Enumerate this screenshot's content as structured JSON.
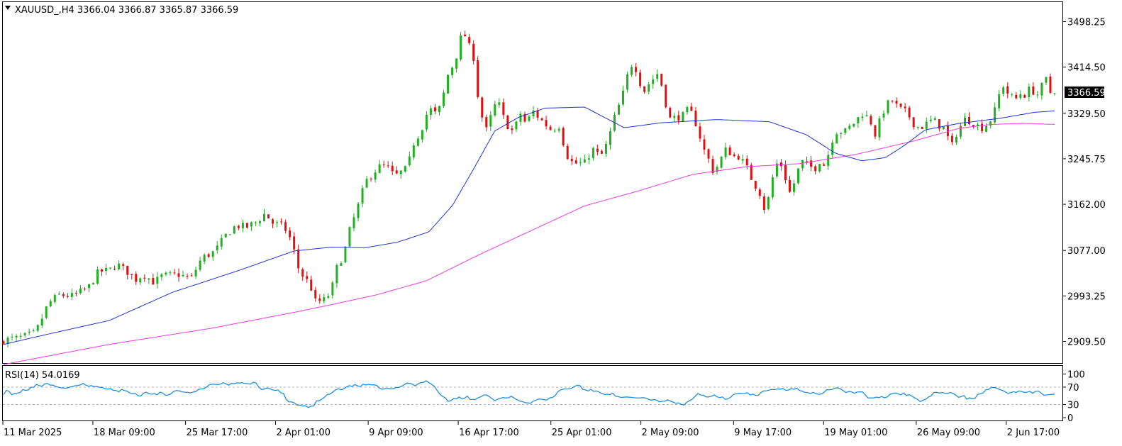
{
  "header": {
    "symbol_line": "XAUUSD_,H4  3366.04 3366.87 3365.87 3366.59"
  },
  "price_tag": "3366.59",
  "rsi_label": "RSI(14) 54.0169",
  "colors": {
    "bull": "#22b022",
    "bear": "#e01010",
    "ma_fast": "#1f35d8",
    "ma_slow": "#ef3ae0",
    "rsi": "#1f8fe0",
    "price_tag_bg": "#000000"
  },
  "chart_data": [
    {
      "type": "candlestick",
      "title": "XAUUSD_,H4",
      "ohlc_last": {
        "open": 3366.04,
        "high": 3366.87,
        "low": 3365.87,
        "close": 3366.59
      },
      "y_ticks": [
        "3498.25",
        "3414.50",
        "3329.50",
        "3245.75",
        "3162.00",
        "3077.00",
        "2993.25",
        "2909.50"
      ],
      "ylim": [
        2866,
        3526
      ],
      "x_ticks": [
        "11 Mar 2025",
        "18 Mar 09:00",
        "25 Mar 17:00",
        "2 Apr 01:00",
        "9 Apr 09:00",
        "16 Apr 17:00",
        "25 Apr 01:00",
        "2 May 09:00",
        "9 May 17:00",
        "19 May 01:00",
        "26 May 09:00",
        "2 Jun 17:00"
      ],
      "candles_count": 247,
      "close_path": [
        [
          0,
          2912
        ],
        [
          6,
          2916
        ],
        [
          12,
          2925
        ],
        [
          14,
          2946
        ],
        [
          17,
          2980
        ],
        [
          21,
          2995
        ],
        [
          26,
          2993
        ],
        [
          32,
          3008
        ],
        [
          36,
          3038
        ],
        [
          40,
          3040
        ],
        [
          43,
          3052
        ],
        [
          47,
          3037
        ],
        [
          50,
          3023
        ],
        [
          53,
          3033
        ],
        [
          57,
          3018
        ],
        [
          60,
          3030
        ],
        [
          66,
          3033
        ],
        [
          71,
          3025
        ],
        [
          75,
          3063
        ],
        [
          80,
          3075
        ],
        [
          84,
          3104
        ],
        [
          88,
          3123
        ],
        [
          92,
          3120
        ],
        [
          96,
          3130
        ],
        [
          99,
          3145
        ],
        [
          102,
          3127
        ],
        [
          106,
          3122
        ],
        [
          109,
          3095
        ],
        [
          112,
          3038
        ],
        [
          116,
          3015
        ],
        [
          118,
          2983
        ],
        [
          121,
          2984
        ],
        [
          124,
          3000
        ],
        [
          126,
          3043
        ],
        [
          129,
          3072
        ],
        [
          131,
          3113
        ],
        [
          134,
          3155
        ],
        [
          137,
          3203
        ],
        [
          142,
          3231
        ],
        [
          145,
          3233
        ],
        [
          148,
          3213
        ],
        [
          153,
          3229
        ],
        [
          155,
          3272
        ],
        [
          158,
          3297
        ],
        [
          161,
          3339
        ],
        [
          164,
          3327
        ],
        [
          166,
          3350
        ],
        [
          168,
          3398
        ],
        [
          171,
          3426
        ],
        [
          174,
          3485
        ],
        [
          175,
          3468
        ],
        [
          178,
          3432
        ],
        [
          179,
          3395
        ],
        [
          180,
          3340
        ],
        [
          183,
          3296
        ],
        [
          185,
          3332
        ],
        [
          187,
          3354
        ],
        [
          190,
          3312
        ],
        [
          193,
          3295
        ],
        [
          196,
          3332
        ],
        [
          198,
          3306
        ],
        [
          200,
          3336
        ],
        [
          203,
          3320
        ],
        [
          205,
          3310
        ],
        [
          208,
          3296
        ],
        [
          210,
          3313
        ],
        [
          212,
          3275
        ],
        [
          214,
          3244
        ],
        [
          216,
          3237
        ],
        [
          220,
          3238
        ],
        [
          223,
          3264
        ],
        [
          226,
          3249
        ],
        [
          228,
          3268
        ],
        [
          230,
          3298
        ],
        [
          232,
          3333
        ],
        [
          234,
          3354
        ],
        [
          236,
          3395
        ],
        [
          238,
          3421
        ],
        [
          240,
          3408
        ],
        [
          242,
          3366
        ],
        [
          244,
          3382
        ],
        [
          246,
          3393
        ],
        [
          248,
          3405
        ],
        [
          250,
          3365
        ],
        [
          252,
          3319
        ],
        [
          255,
          3322
        ],
        [
          257,
          3324
        ],
        [
          259,
          3335
        ],
        [
          261,
          3327
        ],
        [
          263,
          3298
        ],
        [
          265,
          3264
        ],
        [
          267,
          3244
        ],
        [
          269,
          3219
        ],
        [
          271,
          3240
        ],
        [
          274,
          3267
        ],
        [
          276,
          3249
        ],
        [
          278,
          3252
        ],
        [
          281,
          3234
        ],
        [
          284,
          3200
        ],
        [
          286,
          3189
        ],
        [
          288,
          3155
        ],
        [
          290,
          3177
        ],
        [
          292,
          3233
        ],
        [
          294,
          3241
        ],
        [
          296,
          3211
        ],
        [
          298,
          3179
        ],
        [
          300,
          3212
        ],
        [
          302,
          3241
        ],
        [
          305,
          3233
        ],
        [
          307,
          3226
        ],
        [
          309,
          3242
        ],
        [
          311,
          3233
        ],
        [
          314,
          3284
        ],
        [
          316,
          3300
        ],
        [
          318,
          3293
        ],
        [
          320,
          3302
        ],
        [
          323,
          3317
        ],
        [
          325,
          3330
        ],
        [
          328,
          3319
        ],
        [
          330,
          3290
        ],
        [
          333,
          3332
        ],
        [
          336,
          3356
        ],
        [
          339,
          3338
        ],
        [
          342,
          3331
        ],
        [
          345,
          3308
        ],
        [
          347,
          3302
        ],
        [
          349,
          3309
        ],
        [
          352,
          3318
        ],
        [
          354,
          3308
        ],
        [
          356,
          3302
        ],
        [
          359,
          3268
        ],
        [
          361,
          3295
        ],
        [
          364,
          3319
        ],
        [
          367,
          3313
        ],
        [
          369,
          3306
        ],
        [
          371,
          3302
        ],
        [
          374,
          3319
        ],
        [
          376,
          3342
        ],
        [
          378,
          3386
        ],
        [
          380,
          3368
        ],
        [
          383,
          3354
        ],
        [
          385,
          3366
        ],
        [
          387,
          3363
        ],
        [
          389,
          3378
        ],
        [
          391,
          3360
        ],
        [
          393,
          3378
        ],
        [
          395,
          3393
        ],
        [
          397,
          3357
        ],
        [
          398,
          3366
        ]
      ],
      "ma_fast_path": [
        [
          0,
          2904
        ],
        [
          16,
          2922
        ],
        [
          40,
          2948
        ],
        [
          64,
          3000
        ],
        [
          89,
          3040
        ],
        [
          110,
          3076
        ],
        [
          124,
          3083
        ],
        [
          137,
          3082
        ],
        [
          149,
          3092
        ],
        [
          161,
          3111
        ],
        [
          170,
          3160
        ],
        [
          178,
          3227
        ],
        [
          186,
          3297
        ],
        [
          195,
          3322
        ],
        [
          205,
          3339
        ],
        [
          220,
          3341
        ],
        [
          235,
          3303
        ],
        [
          249,
          3312
        ],
        [
          270,
          3318
        ],
        [
          290,
          3314
        ],
        [
          304,
          3290
        ],
        [
          315,
          3256
        ],
        [
          325,
          3242
        ],
        [
          334,
          3248
        ],
        [
          341,
          3270
        ],
        [
          349,
          3299
        ],
        [
          362,
          3311
        ],
        [
          377,
          3320
        ],
        [
          390,
          3331
        ],
        [
          398,
          3334
        ]
      ],
      "ma_slow_path": [
        [
          0,
          2867
        ],
        [
          40,
          2904
        ],
        [
          79,
          2934
        ],
        [
          110,
          2963
        ],
        [
          124,
          2977
        ],
        [
          141,
          2995
        ],
        [
          160,
          3021
        ],
        [
          180,
          3069
        ],
        [
          200,
          3114
        ],
        [
          220,
          3159
        ],
        [
          240,
          3186
        ],
        [
          261,
          3217
        ],
        [
          281,
          3231
        ],
        [
          302,
          3237
        ],
        [
          323,
          3254
        ],
        [
          345,
          3279
        ],
        [
          362,
          3302
        ],
        [
          374,
          3309
        ],
        [
          386,
          3311
        ],
        [
          398,
          3309
        ]
      ]
    },
    {
      "type": "line",
      "title": "RSI(14) 54.0169",
      "y_ticks": [
        "100",
        "70",
        "30",
        "0"
      ],
      "ylim": [
        0,
        100
      ],
      "levels": [
        70,
        30
      ],
      "series": [
        {
          "values": [
            52.3,
            62.7,
            60.1,
            52.5,
            55.4,
            56.2,
            57.4,
            64.2,
            62.8,
            63.3,
            69.8,
            70.0,
            76.1,
            73.5,
            72.0,
            77.2,
            78.3,
            74.6,
            74.4,
            71.5,
            69.5,
            68.3,
            67.8,
            67.7,
            69.7,
            71.2,
            73.1,
            73.5,
            75.2,
            78.3,
            74.5,
            72.1,
            73.5,
            71.1,
            71.6,
            69.6,
            69.5,
            66.2,
            65.2,
            66.5,
            62.4,
            62.5,
            59.0,
            64.8,
            62.4,
            60.8,
            56.8,
            55.5,
            55.4,
            50.4,
            49.4,
            56.3,
            58.4,
            55.1,
            53.6,
            55.0,
            52.6,
            58.4,
            56.4,
            51.1,
            52.1,
            54.6,
            60.0,
            62.1,
            61.3,
            59.3,
            58.3,
            58.0,
            56.7,
            58.6,
            59.6,
            64.7,
            65.8,
            66.3,
            70.4,
            75.5,
            76.6,
            76.4,
            75.9,
            76.7,
            80.1,
            77.8,
            74.5,
            78.5,
            77.7,
            79.9,
            79.3,
            80.0,
            78.5,
            77.9,
            76.8,
            81.1,
            79.3,
            70.0,
            64.5,
            65.6,
            68.3,
            66.3,
            63.8,
            62.5,
            63.6,
            57.1,
            55.7,
            41.1,
            36.3,
            36.0,
            33.6,
            28.9,
            28.7,
            26.5,
            27.3,
            23.4,
            26.1,
            26.7,
            38.2,
            39.0,
            42.4,
            47.1,
            53.1,
            54.2,
            58.9,
            63.7,
            66.4,
            63.8,
            65.9,
            70.5,
            73.5,
            71.4,
            75.8,
            73.0,
            71.3,
            76.5,
            74.8,
            76.5,
            75.3,
            75.3,
            73.9,
            67.7,
            64.9,
            66.6,
            67.4,
            66.1,
            66.3,
            68.9,
            69.4,
            71.7,
            75.4,
            79.3,
            78.8,
            76.7,
            72.9,
            77.2,
            80.3,
            81.0,
            84.5,
            80.1,
            76.4,
            71.8,
            62.2,
            53.8,
            48.6,
            45.0,
            37.1,
            38.5,
            43.9,
            42.8,
            47.4,
            43.6,
            44.5,
            49.4,
            41.6,
            41.7,
            41.5,
            45.9,
            48.0,
            51.9,
            52.2,
            48.1,
            43.7,
            39.0,
            42.1,
            44.3,
            46.0,
            45.2,
            45.5,
            49.1,
            45.2,
            41.5,
            38.1,
            37.1,
            34.3,
            33.8,
            32.9,
            37.7,
            40.2,
            42.7,
            42.2,
            41.2,
            40.5,
            45.2,
            46.4,
            50.6,
            59.6,
            63.8,
            65.2,
            65.8,
            65.8,
            67.4,
            71.6,
            74.1,
            73.6,
            65.1,
            63.5,
            61.2,
            65.0,
            60.3,
            61.2,
            58.8,
            55.3,
            53.0,
            53.6,
            52.8,
            55.7,
            49.1,
            48.1,
            46.4,
            46.8,
            47.5,
            46.8,
            46.4,
            45.6,
            45.1,
            45.2,
            45.9,
            44.8,
            42.3,
            40.0,
            41.5,
            40.1,
            36.2,
            37.6,
            37.8,
            40.8,
            38.1,
            35.6,
            32.8,
            33.8,
            30.3,
            28.7,
            35.5,
            39.0,
            42.5,
            48.8,
            55.1,
            51.9,
            51.6,
            47.4,
            47.5,
            49.2,
            52.1,
            47.6,
            46.0,
            47.4,
            41.8,
            43.3,
            47.1,
            53.4,
            54.5,
            55.6,
            55.3,
            55.5,
            57.3,
            52.2,
            53.8,
            51.3,
            51.0,
            57.7,
            61.1,
            61.6,
            63.3,
            64.8,
            64.4,
            65.7,
            65.4,
            66.8,
            62.6,
            63.3,
            66.7,
            64.9,
            67.8,
            62.6,
            60.3,
            57.9,
            57.8,
            54.9,
            58.0,
            55.1,
            53.5,
            54.1,
            58.0,
            64.1,
            63.5,
            64.8,
            67.4,
            68.4,
            65.8,
            61.7,
            57.6,
            59.9,
            59.2,
            55.9,
            58.7,
            59.2,
            58.9,
            52.6,
            45.1,
            45.3,
            45.1,
            47.2,
            45.9,
            48.5,
            45.5,
            47.5,
            53.5,
            55.5,
            56.6,
            54.3,
            52.4,
            56.4,
            50.6,
            52.9,
            49.3,
            45.6,
            42.1,
            36.8,
            39.8,
            42.1,
            47.2,
            49.8,
            57.8,
            58.1,
            56.4,
            57.6,
            56.3,
            55.8,
            57.8,
            55.5,
            51.7,
            46.5,
            48.5,
            50.6,
            42.1,
            45.5,
            43.2,
            44.3,
            53.5,
            54.4,
            57.2,
            64.1,
            64.7,
            69.7,
            68.9,
            67.7,
            64.2,
            62.6,
            59.0,
            55.7,
            57.4,
            59.5,
            57.7,
            61.1,
            59.9,
            57.9,
            58.4,
            60.5,
            55.8,
            60.1,
            61.0,
            56.8,
            51.5,
            51.9,
            52.9,
            53.3,
            54.0
          ]
        }
      ]
    }
  ]
}
